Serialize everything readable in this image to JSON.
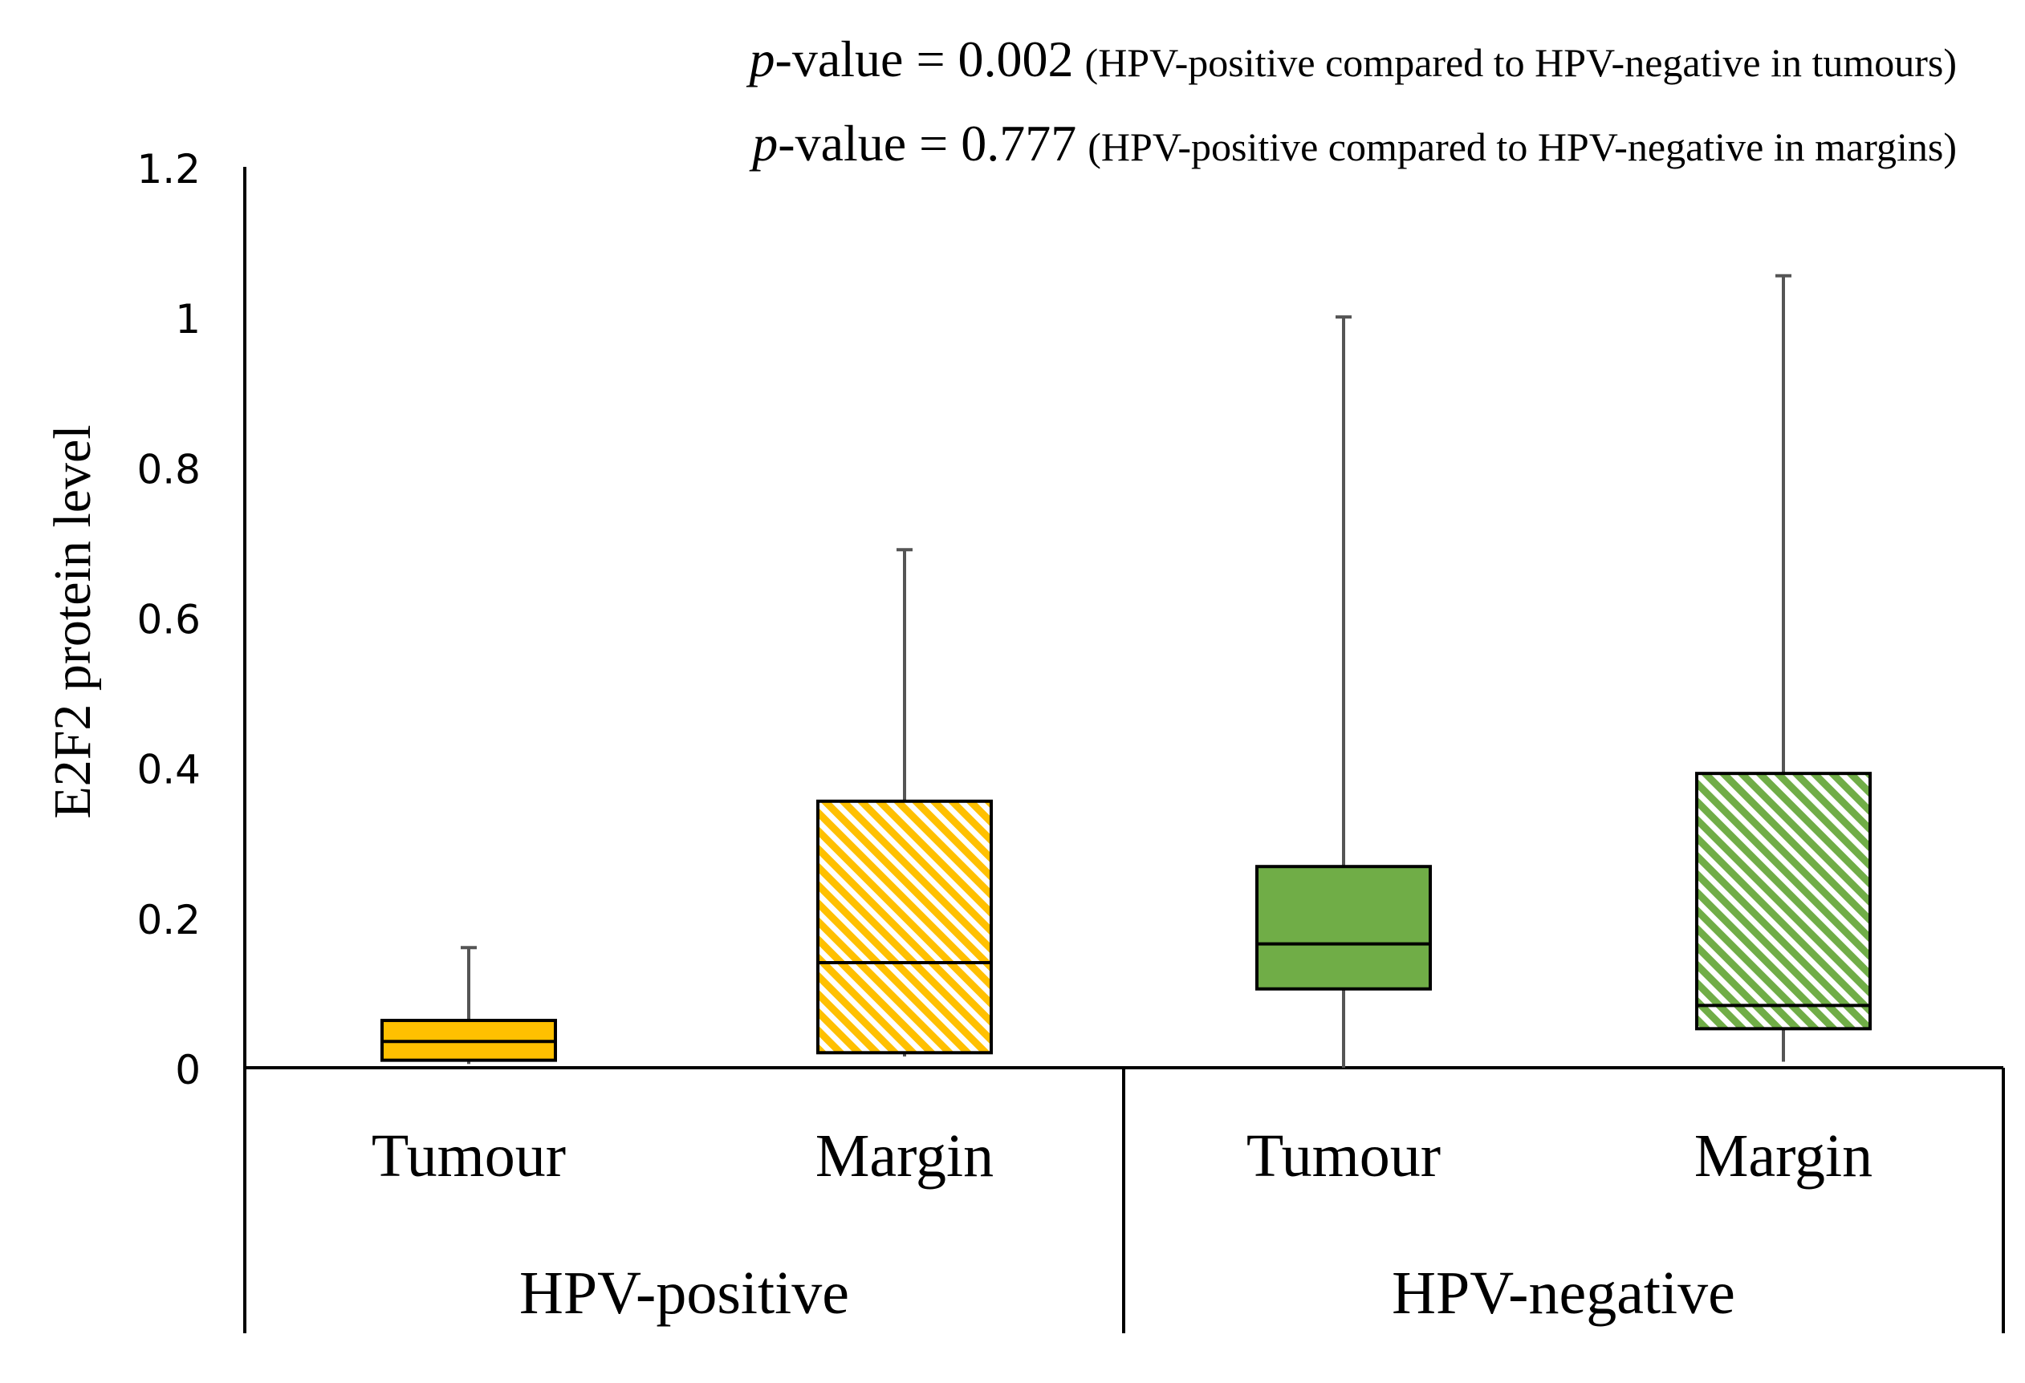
{
  "annotations": [
    {
      "prefix": "p",
      "value_text": "-value = 0.002",
      "note": "(HPV-positive compared  to HPV-negative in tumours)"
    },
    {
      "prefix": "p",
      "value_text": "-value = 0.777",
      "note": "(HPV-positive compared  to HPV-negative in margins)"
    }
  ],
  "chart_data": {
    "type": "box",
    "ylabel": "E2F2 protein level",
    "ylim": [
      0,
      1.2
    ],
    "yticks": [
      "0",
      "0.2",
      "0.4",
      "0.6",
      "0.8",
      "1",
      "1.2"
    ],
    "groups": [
      "HPV-positive",
      "HPV-negative"
    ],
    "categories": [
      "Tumour",
      "Margin",
      "Tumour",
      "Margin"
    ],
    "boxes": [
      {
        "group": "HPV-positive",
        "category": "Tumour",
        "min": 0.005,
        "q1": 0.01,
        "median": 0.035,
        "q3": 0.063,
        "max": 0.16,
        "color": "#FFC000",
        "pattern": "solid"
      },
      {
        "group": "HPV-positive",
        "category": "Margin",
        "min": 0.015,
        "q1": 0.02,
        "median": 0.14,
        "q3": 0.355,
        "max": 0.69,
        "color": "#FFC000",
        "pattern": "hatched"
      },
      {
        "group": "HPV-negative",
        "category": "Tumour",
        "min": 0.0,
        "q1": 0.105,
        "median": 0.165,
        "q3": 0.268,
        "max": 1.0,
        "color": "#70AD47",
        "pattern": "solid"
      },
      {
        "group": "HPV-negative",
        "category": "Margin",
        "min": 0.008,
        "q1": 0.052,
        "median": 0.083,
        "q3": 0.392,
        "max": 1.055,
        "color": "#70AD47",
        "pattern": "hatched"
      }
    ]
  }
}
